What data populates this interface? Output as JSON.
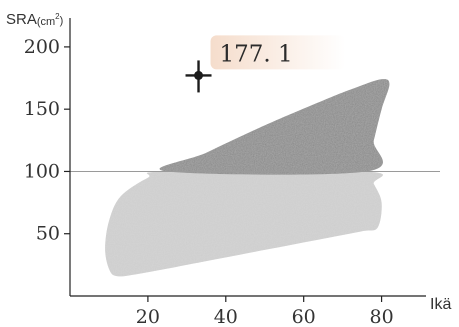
{
  "chart_data": {
    "type": "scatter",
    "title": "",
    "ylabel": "SRA(cm²)",
    "ylabel_main": "SRA",
    "ylabel_unit": "(cm",
    "ylabel_exp": "2",
    "ylabel_close": ")",
    "xlabel": "Ikä",
    "xlim": [
      0,
      95
    ],
    "ylim": [
      0,
      220
    ],
    "x_ticks": [
      20,
      40,
      60,
      80
    ],
    "y_ticks": [
      50,
      100,
      150,
      200
    ],
    "reference_line": {
      "y": 100
    },
    "point": {
      "x": 33,
      "y": 177.1,
      "label": "177. 1"
    },
    "reference_region": {
      "upper": {
        "description": "dark-shaded band above 100",
        "polygon": [
          [
            25,
            100
          ],
          [
            35,
            115
          ],
          [
            50,
            137
          ],
          [
            65,
            157
          ],
          [
            74,
            168
          ],
          [
            80,
            174
          ],
          [
            82,
            170
          ],
          [
            80,
            150
          ],
          [
            78,
            125
          ],
          [
            76,
            100
          ]
        ]
      },
      "lower": {
        "description": "light-stippled band below 100",
        "polygon": [
          [
            25,
            100
          ],
          [
            20,
            95
          ],
          [
            13,
            80
          ],
          [
            10,
            60
          ],
          [
            9,
            38
          ],
          [
            10,
            22
          ],
          [
            12,
            16
          ],
          [
            18,
            18
          ],
          [
            35,
            28
          ],
          [
            50,
            37
          ],
          [
            65,
            46
          ],
          [
            75,
            52
          ],
          [
            79,
            55
          ],
          [
            80,
            75
          ],
          [
            78,
            90
          ],
          [
            76,
            100
          ]
        ]
      }
    },
    "colors": {
      "upper_fill": "#858585",
      "lower_fill": "#d6d6d6",
      "axis": "#222222",
      "reference_line": "#9a9a9a",
      "marker": "#1c1c1c",
      "highlight": "#f4d9c6"
    }
  }
}
